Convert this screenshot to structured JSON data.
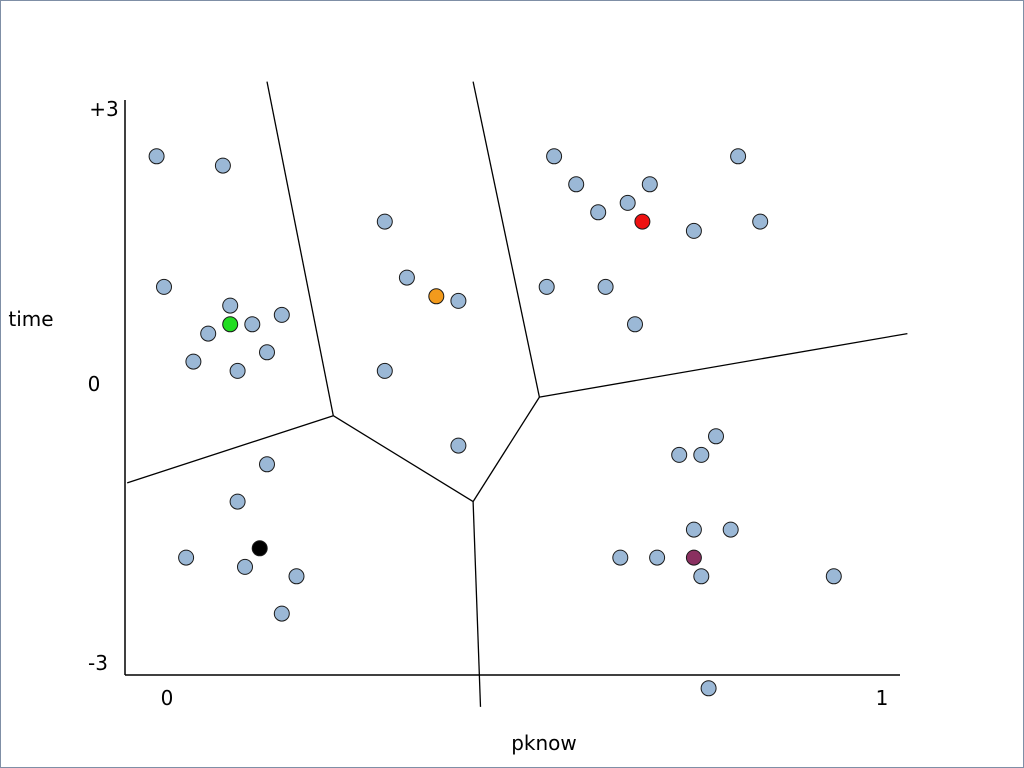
{
  "chart_data": {
    "type": "scatter",
    "xlabel": "pknow",
    "ylabel": "time",
    "x_ticks": [
      {
        "value": 0,
        "label": "0"
      },
      {
        "value": 1,
        "label": "1"
      }
    ],
    "y_ticks": [
      {
        "value": 3,
        "label": "+3"
      },
      {
        "value": 0,
        "label": "0"
      },
      {
        "value": -3,
        "label": "-3"
      }
    ],
    "xlim": [
      -0.05,
      1.0
    ],
    "ylim": [
      -3.0,
      3.05
    ],
    "grid": false,
    "colors": {
      "point_fill": "#9bb8d6",
      "point_stroke": "#1a1a1a",
      "boundary": "#000000",
      "axis": "#000000"
    },
    "points": [
      {
        "x": -0.01,
        "y": 2.44
      },
      {
        "x": 0.08,
        "y": 2.34
      },
      {
        "x": 0.0,
        "y": 1.04
      },
      {
        "x": 0.09,
        "y": 0.84
      },
      {
        "x": 0.16,
        "y": 0.74
      },
      {
        "x": 0.06,
        "y": 0.54
      },
      {
        "x": 0.12,
        "y": 0.64
      },
      {
        "x": 0.04,
        "y": 0.24
      },
      {
        "x": 0.14,
        "y": 0.34
      },
      {
        "x": 0.1,
        "y": 0.14
      },
      {
        "x": 0.3,
        "y": 1.74
      },
      {
        "x": 0.33,
        "y": 1.14
      },
      {
        "x": 0.4,
        "y": 0.89
      },
      {
        "x": 0.3,
        "y": 0.14
      },
      {
        "x": 0.4,
        "y": -0.66
      },
      {
        "x": 0.53,
        "y": 2.44
      },
      {
        "x": 0.56,
        "y": 2.14
      },
      {
        "x": 0.59,
        "y": 1.84
      },
      {
        "x": 0.63,
        "y": 1.94
      },
      {
        "x": 0.66,
        "y": 2.14
      },
      {
        "x": 0.78,
        "y": 2.44
      },
      {
        "x": 0.72,
        "y": 1.64
      },
      {
        "x": 0.81,
        "y": 1.74
      },
      {
        "x": 0.52,
        "y": 1.04
      },
      {
        "x": 0.6,
        "y": 1.04
      },
      {
        "x": 0.64,
        "y": 0.64
      },
      {
        "x": 0.14,
        "y": -0.86
      },
      {
        "x": 0.1,
        "y": -1.26
      },
      {
        "x": 0.03,
        "y": -1.86
      },
      {
        "x": 0.11,
        "y": -1.96
      },
      {
        "x": 0.18,
        "y": -2.06
      },
      {
        "x": 0.16,
        "y": -2.46
      },
      {
        "x": 0.75,
        "y": -0.56
      },
      {
        "x": 0.7,
        "y": -0.76
      },
      {
        "x": 0.73,
        "y": -0.76
      },
      {
        "x": 0.72,
        "y": -1.56
      },
      {
        "x": 0.77,
        "y": -1.56
      },
      {
        "x": 0.62,
        "y": -1.86
      },
      {
        "x": 0.67,
        "y": -1.86
      },
      {
        "x": 0.73,
        "y": -2.06
      },
      {
        "x": 0.91,
        "y": -2.06
      },
      {
        "x": 0.74,
        "y": -3.26
      }
    ],
    "centroids": [
      {
        "x": 0.09,
        "y": 0.64,
        "color": "#22dd22"
      },
      {
        "x": 0.37,
        "y": 0.94,
        "color": "#f29a1c"
      },
      {
        "x": 0.65,
        "y": 1.74,
        "color": "#ee1111"
      },
      {
        "x": 0.13,
        "y": -1.76,
        "color": "#000000"
      },
      {
        "x": 0.72,
        "y": -1.86,
        "color": "#8a3060"
      }
    ],
    "boundaries": [
      [
        {
          "x": 0.14,
          "y": 3.24
        },
        {
          "x": 0.23,
          "y": -0.34
        }
      ],
      [
        {
          "x": -0.05,
          "y": -1.06
        },
        {
          "x": 0.23,
          "y": -0.34
        }
      ],
      [
        {
          "x": 0.23,
          "y": -0.34
        },
        {
          "x": 0.42,
          "y": -1.26
        }
      ],
      [
        {
          "x": 0.42,
          "y": -1.26
        },
        {
          "x": 0.43,
          "y": -3.46
        }
      ],
      [
        {
          "x": 0.42,
          "y": -1.26
        },
        {
          "x": 0.51,
          "y": -0.14
        }
      ],
      [
        {
          "x": 0.51,
          "y": -0.14
        },
        {
          "x": 0.42,
          "y": 3.24
        }
      ],
      [
        {
          "x": 0.51,
          "y": -0.14
        },
        {
          "x": 1.01,
          "y": 0.54
        }
      ]
    ]
  }
}
